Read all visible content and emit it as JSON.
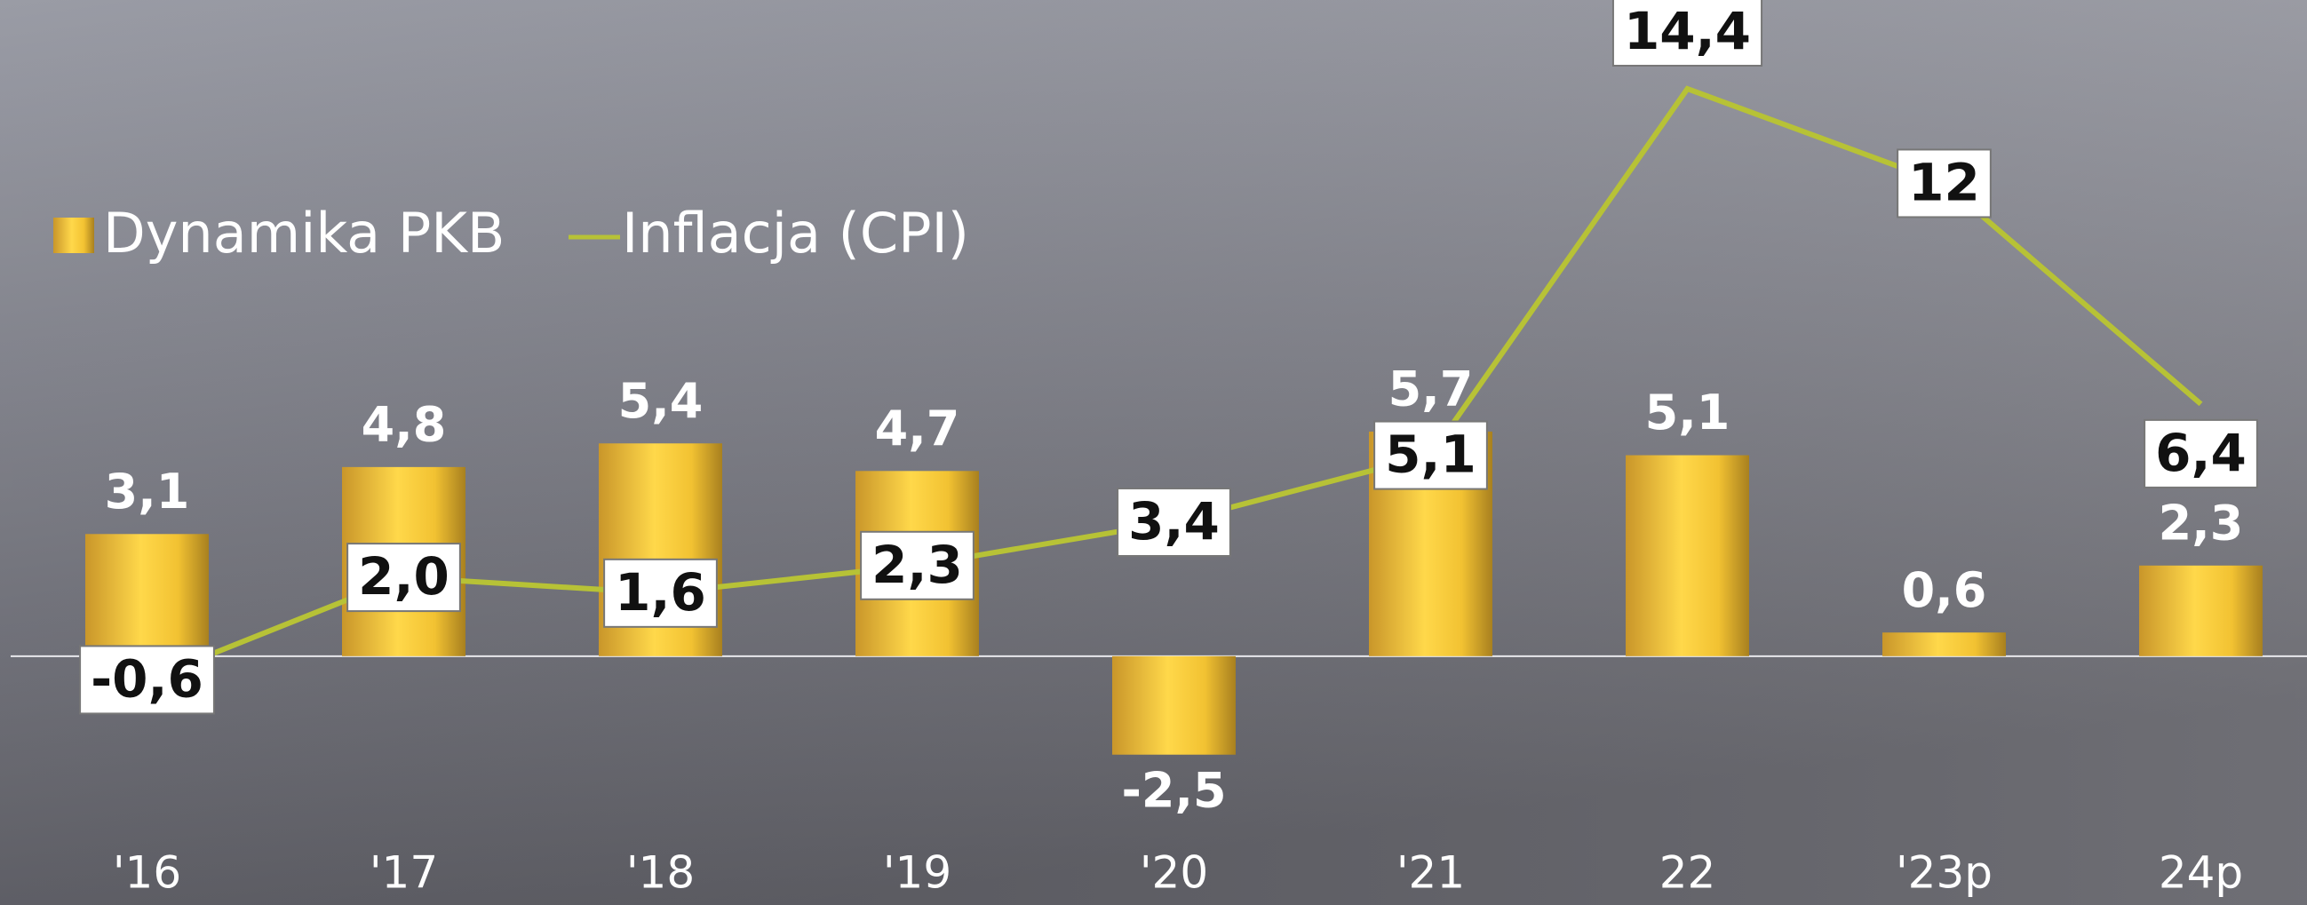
{
  "chart_data": {
    "type": "bar_line",
    "categories": [
      "'16",
      "'17",
      "'18",
      "'19",
      "'20",
      "'21",
      "22",
      "'23p",
      "24p"
    ],
    "series": [
      {
        "name": "Dynamika PKB",
        "type": "bar",
        "color": "#f2c232",
        "values": [
          3.1,
          4.8,
          5.4,
          4.7,
          -2.5,
          5.7,
          5.1,
          0.6,
          2.3
        ],
        "value_labels": [
          "3,1",
          "4,8",
          "5,4",
          "4,7",
          "-2,5",
          "5,7",
          "5,1",
          "0,6",
          "2,3"
        ]
      },
      {
        "name": "Inflacja (CPI)",
        "type": "line",
        "color": "#b7c236",
        "values": [
          -0.6,
          2.0,
          1.6,
          2.3,
          3.4,
          5.1,
          14.4,
          12,
          6.4
        ],
        "value_labels": [
          "-0,6",
          "2,0",
          "1,6",
          "2,3",
          "3,4",
          "5,1",
          "14,4",
          "12",
          "6,4"
        ]
      }
    ],
    "ylim": [
      -6,
      16
    ]
  }
}
